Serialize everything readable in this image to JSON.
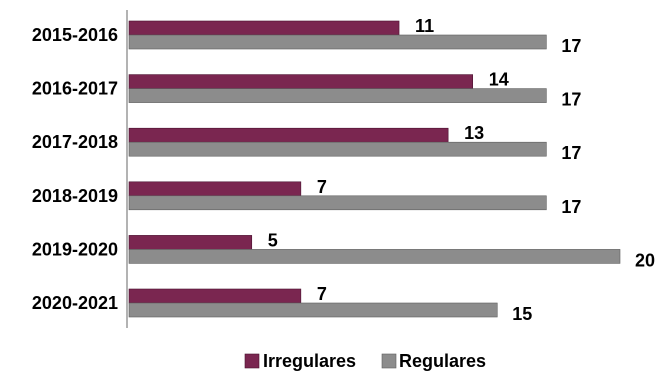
{
  "chart_data": {
    "type": "bar",
    "orientation": "horizontal",
    "categories": [
      "2015-2016",
      "2016-2017",
      "2017-2018",
      "2018-2019",
      "2019-2020",
      "2020-2021"
    ],
    "series": [
      {
        "name": "Irregulares",
        "values": [
          11,
          14,
          13,
          7,
          5,
          7
        ]
      },
      {
        "name": "Regulares",
        "values": [
          17,
          17,
          17,
          17,
          20,
          15
        ]
      }
    ],
    "xlim": [
      0,
      20
    ],
    "grid": false,
    "legend_position": "bottom",
    "colors": {
      "Irregulares": "#7a2650",
      "Regulares": "#8c8c8c"
    }
  }
}
